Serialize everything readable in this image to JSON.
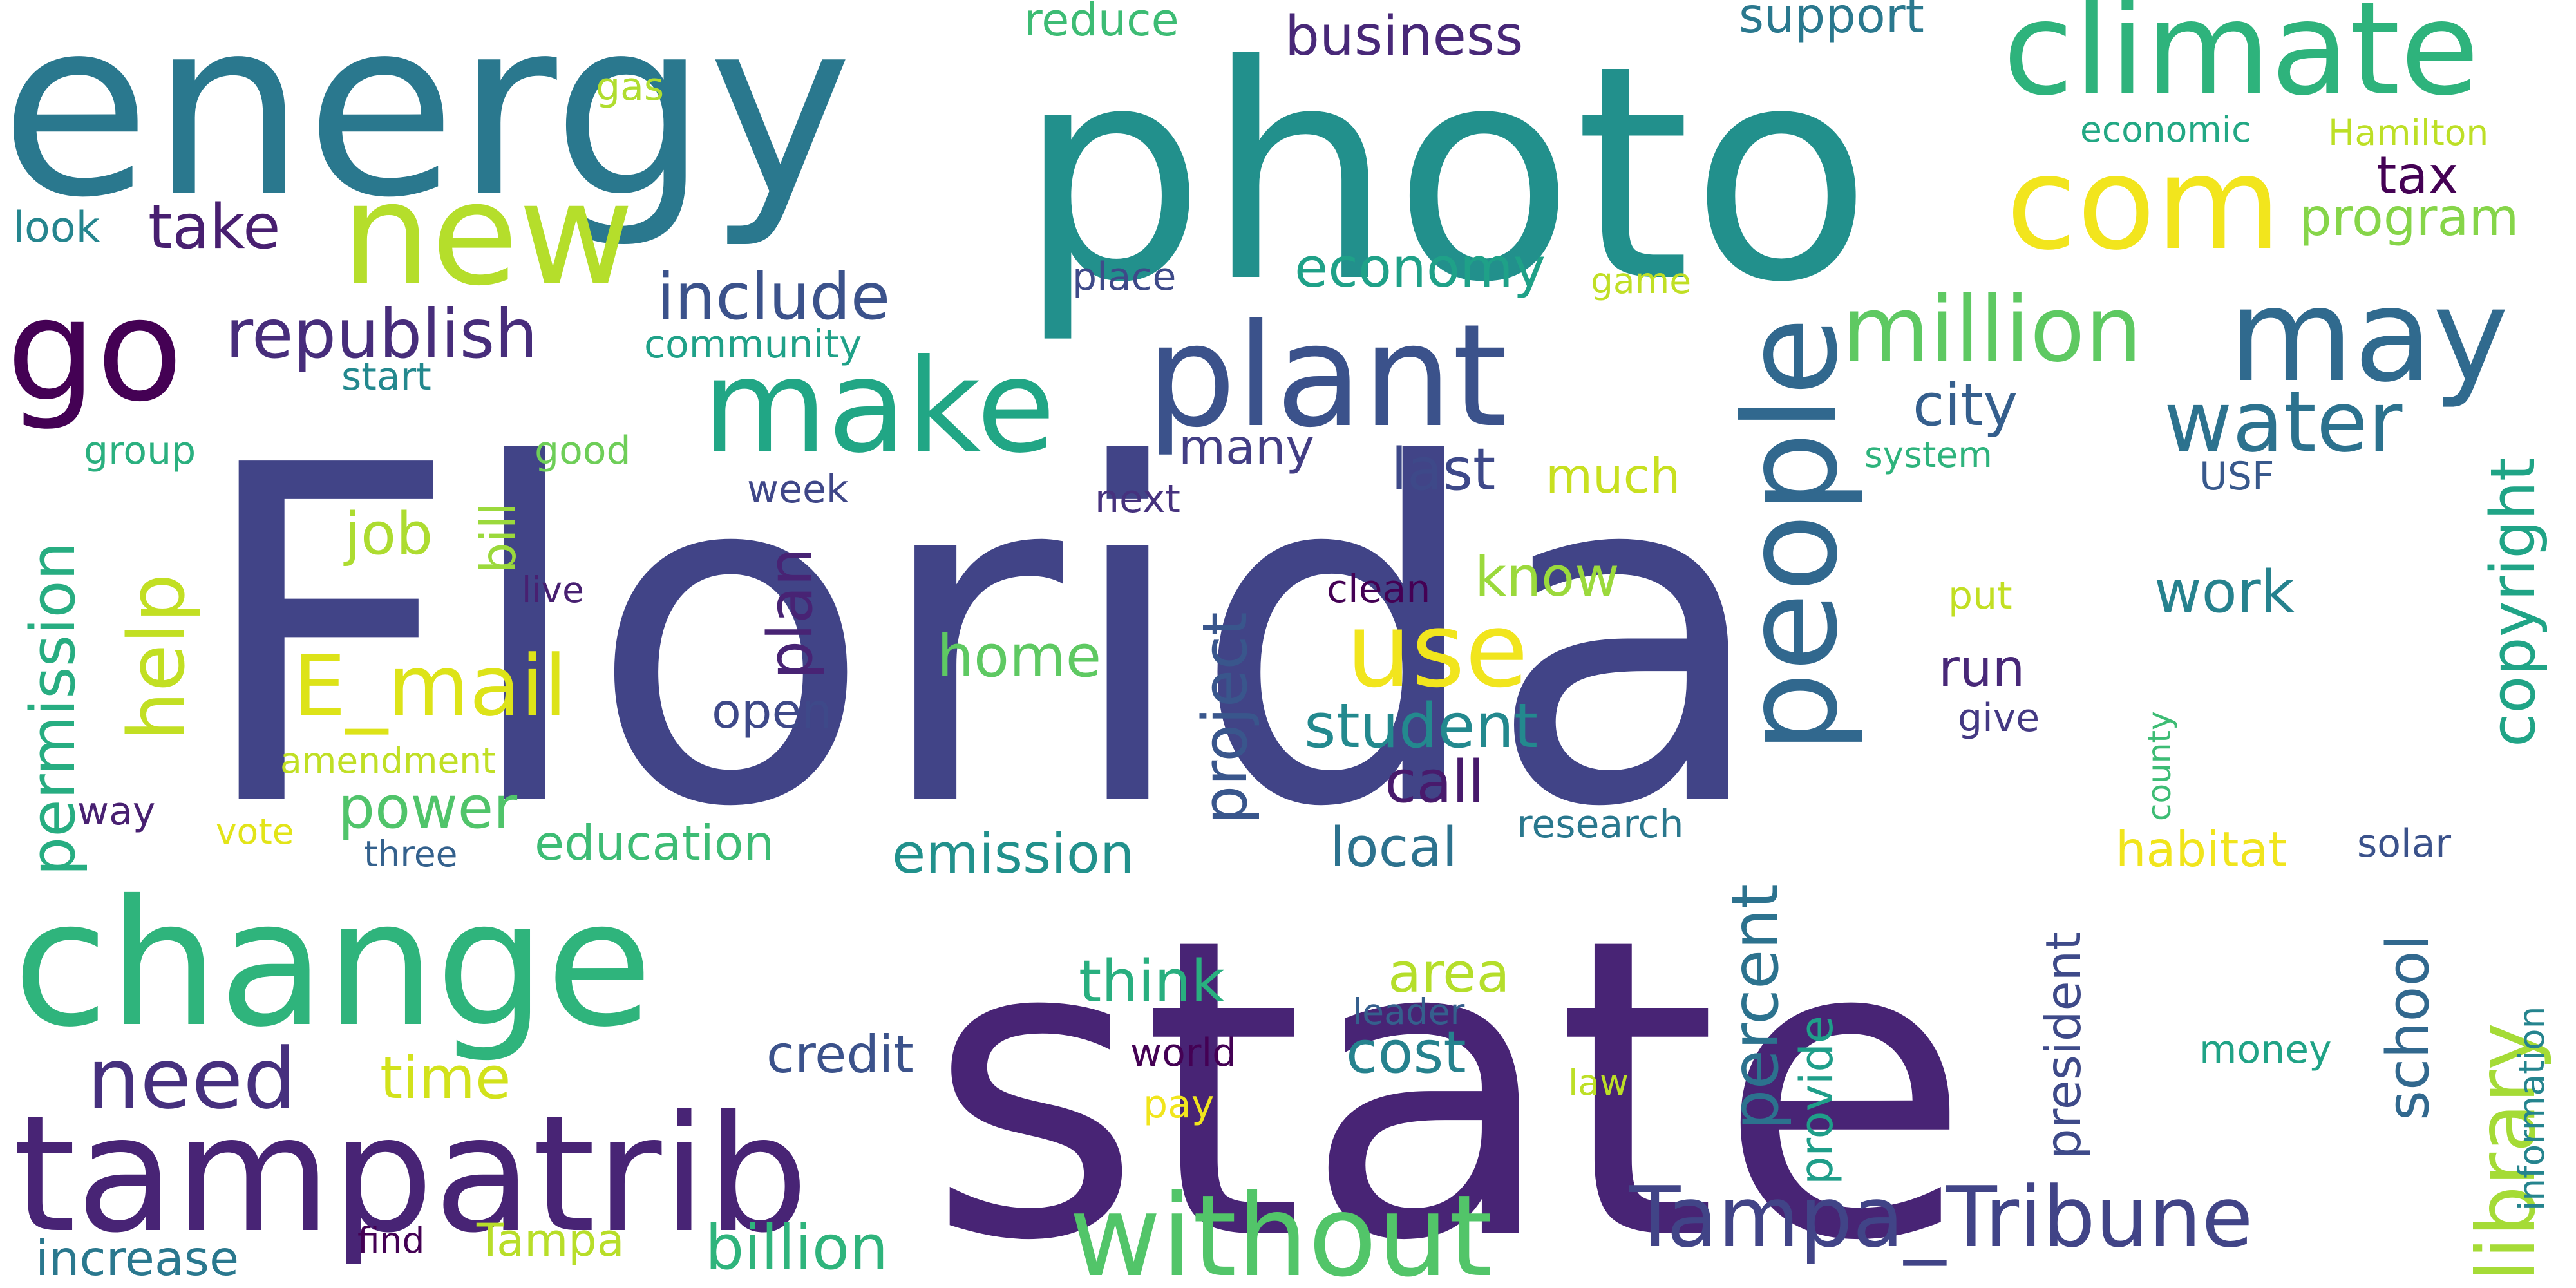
{
  "background": "#ffffff",
  "words": [
    {
      "text": "Florida",
      "color": "#414487"
    },
    {
      "text": "state",
      "color": "#482475"
    },
    {
      "text": "energy",
      "color": "#2a788e"
    },
    {
      "text": "photo",
      "color": "#22908c"
    },
    {
      "text": "change",
      "color": "#2fb47c"
    },
    {
      "text": "tampatrib",
      "color": "#482475"
    },
    {
      "text": "climate",
      "color": "#2eb37c"
    },
    {
      "text": "com",
      "color": "#f2e51d"
    },
    {
      "text": "new",
      "color": "#b5de2b"
    },
    {
      "text": "go",
      "color": "#440154"
    },
    {
      "text": "plant",
      "color": "#3b528b"
    },
    {
      "text": "make",
      "color": "#21a685"
    },
    {
      "text": "people",
      "color": "#31688e"
    },
    {
      "text": "may",
      "color": "#306a8e"
    },
    {
      "text": "million",
      "color": "#5ec962"
    },
    {
      "text": "use",
      "color": "#f1e51d"
    },
    {
      "text": "without",
      "color": "#52c569"
    },
    {
      "text": "Tampa_Tribune",
      "color": "#414487"
    },
    {
      "text": "water",
      "color": "#2c728e"
    },
    {
      "text": "E_mail",
      "color": "#dde318"
    },
    {
      "text": "need",
      "color": "#46307e"
    },
    {
      "text": "library",
      "color": "#a5db36"
    },
    {
      "text": "help",
      "color": "#c2df23"
    },
    {
      "text": "republish",
      "color": "#472d7b"
    },
    {
      "text": "include",
      "color": "#3b528b"
    },
    {
      "text": "permission",
      "color": "#27ad81"
    },
    {
      "text": "copyright",
      "color": "#20a486"
    },
    {
      "text": "billion",
      "color": "#2fb47c"
    },
    {
      "text": "student",
      "color": "#23898e"
    },
    {
      "text": "business",
      "color": "#482878"
    },
    {
      "text": "take",
      "color": "#481f70"
    },
    {
      "text": "economy",
      "color": "#1fa188"
    },
    {
      "text": "project",
      "color": "#39568c"
    },
    {
      "text": "percent",
      "color": "#2c728e"
    },
    {
      "text": "president",
      "color": "#3e4a89"
    },
    {
      "text": "school",
      "color": "#31688e"
    },
    {
      "text": "think",
      "color": "#29af7f"
    },
    {
      "text": "emission",
      "color": "#21918c"
    },
    {
      "text": "job",
      "color": "#addc30"
    },
    {
      "text": "time",
      "color": "#d2e21b"
    },
    {
      "text": "plan",
      "color": "#482374"
    },
    {
      "text": "city",
      "color": "#355f8d"
    },
    {
      "text": "work",
      "color": "#26828e"
    },
    {
      "text": "home",
      "color": "#5ec962"
    },
    {
      "text": "cost",
      "color": "#26828e"
    },
    {
      "text": "area",
      "color": "#b5de2b"
    },
    {
      "text": "call",
      "color": "#481a6c"
    },
    {
      "text": "last",
      "color": "#3e4989"
    },
    {
      "text": "local",
      "color": "#2c728e"
    },
    {
      "text": "provide",
      "color": "#1f9e89"
    },
    {
      "text": "credit",
      "color": "#3b528b"
    },
    {
      "text": "power",
      "color": "#50c46a"
    },
    {
      "text": "education",
      "color": "#3dbc74"
    },
    {
      "text": "know",
      "color": "#9bd93c"
    },
    {
      "text": "open",
      "color": "#3e4989"
    },
    {
      "text": "habitat",
      "color": "#f1e51d"
    },
    {
      "text": "many",
      "color": "#433e85"
    },
    {
      "text": "run",
      "color": "#482878"
    },
    {
      "text": "increase",
      "color": "#2a788e"
    },
    {
      "text": "program",
      "color": "#86d549"
    },
    {
      "text": "tax",
      "color": "#440154"
    },
    {
      "text": "much",
      "color": "#c8e020"
    },
    {
      "text": "research",
      "color": "#2a788e"
    },
    {
      "text": "support",
      "color": "#2a788e"
    },
    {
      "text": "reduce",
      "color": "#3dbc74"
    },
    {
      "text": "Tampa",
      "color": "#b8de29"
    },
    {
      "text": "bill",
      "color": "#9bd93c"
    },
    {
      "text": "community",
      "color": "#1fa188"
    },
    {
      "text": "amendment",
      "color": "#c0df25"
    },
    {
      "text": "information",
      "color": "#25848e"
    },
    {
      "text": "economic",
      "color": "#22a884"
    },
    {
      "text": "Hamilton",
      "color": "#bddf26"
    },
    {
      "text": "gas",
      "color": "#b0dd2f"
    },
    {
      "text": "look",
      "color": "#25858e"
    },
    {
      "text": "place",
      "color": "#3e4a89"
    },
    {
      "text": "game",
      "color": "#c0df25"
    },
    {
      "text": "start",
      "color": "#23888e"
    },
    {
      "text": "group",
      "color": "#2ab07f"
    },
    {
      "text": "good",
      "color": "#6ece58"
    },
    {
      "text": "week",
      "color": "#3f4788"
    },
    {
      "text": "next",
      "color": "#46327e"
    },
    {
      "text": "system",
      "color": "#2eb37c"
    },
    {
      "text": "USF",
      "color": "#38598c"
    },
    {
      "text": "live",
      "color": "#482071"
    },
    {
      "text": "clean",
      "color": "#440154"
    },
    {
      "text": "put",
      "color": "#c2df23"
    },
    {
      "text": "give",
      "color": "#443983"
    },
    {
      "text": "county",
      "color": "#3dbc74"
    },
    {
      "text": "solar",
      "color": "#3b528b"
    },
    {
      "text": "way",
      "color": "#482071"
    },
    {
      "text": "vote",
      "color": "#e2e418"
    },
    {
      "text": "three",
      "color": "#34618d"
    },
    {
      "text": "leader",
      "color": "#355f8d"
    },
    {
      "text": "money",
      "color": "#20a386"
    },
    {
      "text": "world",
      "color": "#440154"
    },
    {
      "text": "law",
      "color": "#bddf26"
    },
    {
      "text": "pay",
      "color": "#f1e51d"
    },
    {
      "text": "find",
      "color": "#440154"
    }
  ]
}
